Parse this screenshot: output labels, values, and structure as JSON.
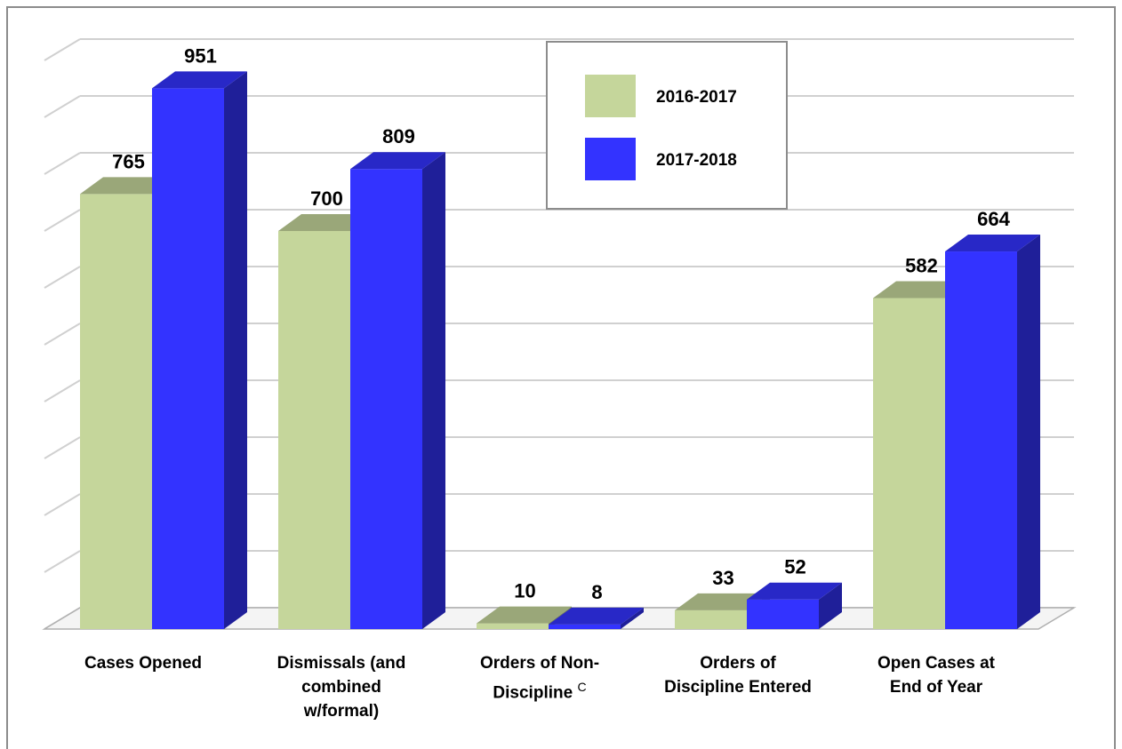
{
  "chart_data": {
    "type": "bar3d",
    "categories": [
      "Cases Opened",
      "Dismissals (and combined w/formal)",
      "Orders of Non-Discipline",
      "Orders of Discipline Entered",
      "Open Cases at End of Year"
    ],
    "annotations": [
      {
        "category": 2,
        "text": "C"
      }
    ],
    "series": [
      {
        "name": "2016-2017",
        "color": "#c5d69b",
        "values": [
          765,
          700,
          10,
          33,
          582
        ]
      },
      {
        "name": "2017-2018",
        "color": "#3333ff",
        "values": [
          951,
          809,
          8,
          52,
          664
        ]
      }
    ],
    "ylim": [
      0,
      1000
    ],
    "yticks": [
      0,
      100,
      200,
      300,
      400,
      500,
      600,
      700,
      800,
      900,
      1000
    ],
    "grid": true,
    "legend": "top-center"
  }
}
